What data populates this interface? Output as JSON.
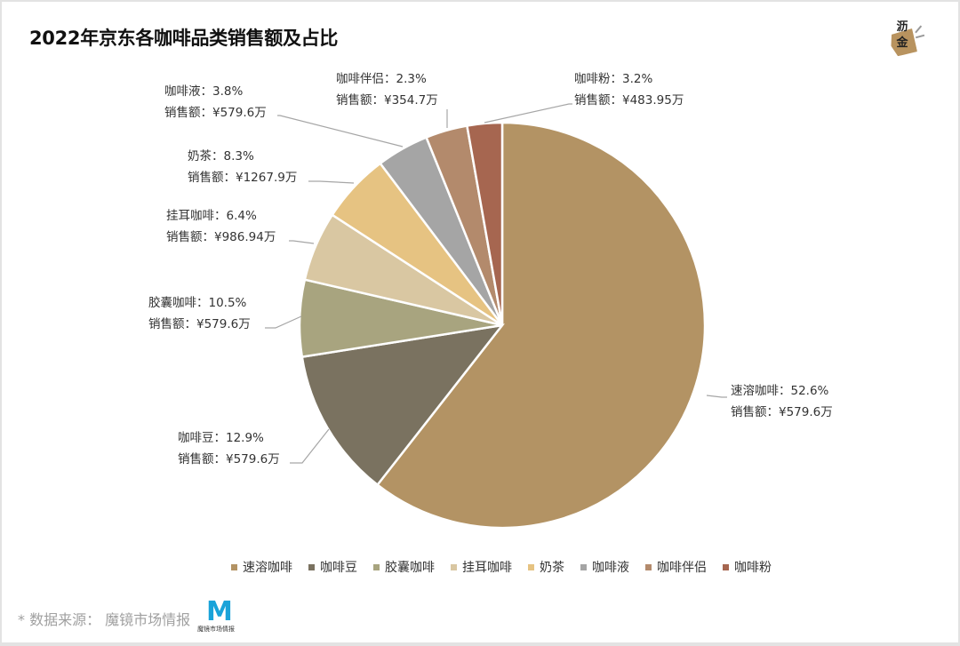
{
  "header": {
    "title": "2022年京东各咖啡品类销售额及占比",
    "logo_text_top": "沥",
    "logo_text_bottom": "金"
  },
  "chart_data": {
    "type": "pie",
    "title": "2022年京东各咖啡品类销售额及占比",
    "unit": "万元",
    "start_angle": "12 o'clock, clockwise",
    "legend_position": "bottom",
    "slices": [
      {
        "name": "速溶咖啡",
        "percent": 52.6,
        "sales": 579.6,
        "color": "#b39364",
        "visual_end_deg": 218
      },
      {
        "name": "咖啡豆",
        "percent": 12.9,
        "sales": 579.6,
        "color": "#7a7260",
        "visual_end_deg": 261
      },
      {
        "name": "胶囊咖啡",
        "percent": 10.5,
        "sales": 579.6,
        "color": "#a8a47f",
        "visual_end_deg": 283
      },
      {
        "name": "挂耳咖啡",
        "percent": 6.4,
        "sales": 986.94,
        "color": "#d9c7a2",
        "visual_end_deg": 303
      },
      {
        "name": "奶茶",
        "percent": 8.3,
        "sales": 1267.9,
        "color": "#e6c382",
        "visual_end_deg": 323
      },
      {
        "name": "咖啡液",
        "percent": 3.8,
        "sales": 579.6,
        "color": "#a5a5a5",
        "visual_end_deg": 338
      },
      {
        "name": "咖啡伴侣",
        "percent": 2.3,
        "sales": 354.7,
        "color": "#b38a6c",
        "visual_end_deg": 350
      },
      {
        "name": "咖啡粉",
        "percent": 3.2,
        "sales": 483.95,
        "color": "#a66650",
        "visual_end_deg": 360
      }
    ]
  },
  "labels": [
    {
      "line1": "速溶咖啡：52.6%",
      "line2": "销售额：¥579.6万"
    },
    {
      "line1": "咖啡豆：12.9%",
      "line2": "销售额：¥579.6万"
    },
    {
      "line1": "胶囊咖啡：10.5%",
      "line2": "销售额：¥579.6万"
    },
    {
      "line1": "挂耳咖啡：6.4%",
      "line2": "销售额：¥986.94万"
    },
    {
      "line1": "奶茶：8.3%",
      "line2": "销售额：¥1267.9万"
    },
    {
      "line1": "咖啡液：3.8%",
      "line2": "销售额：¥579.6万"
    },
    {
      "line1": "咖啡伴侣：2.3%",
      "line2": "销售额：¥354.7万"
    },
    {
      "line1": "咖啡粉：3.2%",
      "line2": "销售额：¥483.95万"
    }
  ],
  "legend": [
    {
      "label": "速溶咖啡",
      "color": "#b39364"
    },
    {
      "label": "咖啡豆",
      "color": "#7a7260"
    },
    {
      "label": "胶囊咖啡",
      "color": "#a8a47f"
    },
    {
      "label": "挂耳咖啡",
      "color": "#d9c7a2"
    },
    {
      "label": "奶茶",
      "color": "#e6c382"
    },
    {
      "label": "咖啡液",
      "color": "#a5a5a5"
    },
    {
      "label": "咖啡伴侣",
      "color": "#b38a6c"
    },
    {
      "label": "咖啡粉",
      "color": "#a66650"
    }
  ],
  "footer": {
    "source": "* 数据来源： 魔镜市场情报",
    "brand_letter": "M",
    "brand_name": "魔镜市场情报"
  }
}
